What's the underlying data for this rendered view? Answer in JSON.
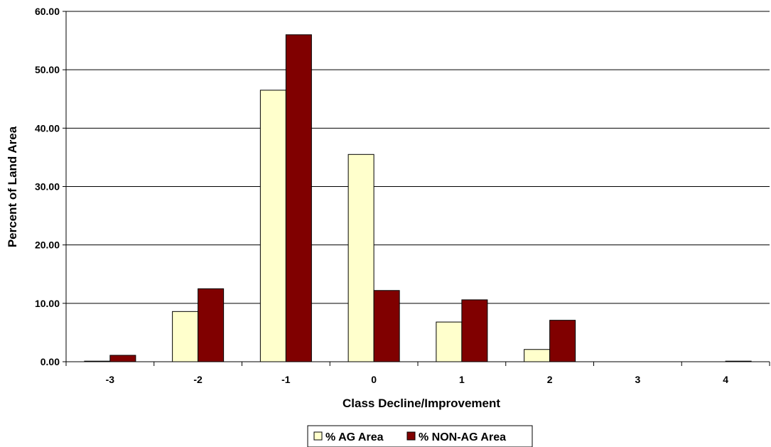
{
  "chart_data": {
    "type": "bar",
    "title": "",
    "xlabel": "Class Decline/Improvement",
    "ylabel": "Percent of Land Area",
    "ylim": [
      0,
      60
    ],
    "yticks": [
      "0.00",
      "10.00",
      "20.00",
      "30.00",
      "40.00",
      "50.00",
      "60.00"
    ],
    "categories": [
      "-3",
      "-2",
      "-1",
      "0",
      "1",
      "2",
      "3",
      "4"
    ],
    "grid": "horizontal major gridlines",
    "legend_position": "bottom",
    "series": [
      {
        "name": "% AG Area",
        "color": "#FFFFCC",
        "values": [
          0.1,
          8.6,
          46.5,
          35.5,
          6.8,
          2.1,
          0.0,
          0.0
        ]
      },
      {
        "name": "% NON-AG Area",
        "color": "#800000",
        "values": [
          1.1,
          12.5,
          56.0,
          12.2,
          10.6,
          7.1,
          0.0,
          0.1
        ]
      }
    ]
  }
}
